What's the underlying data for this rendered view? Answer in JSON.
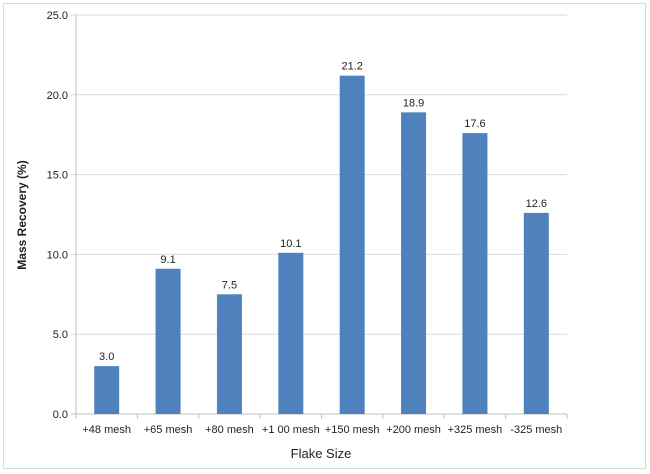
{
  "chart_data": {
    "type": "bar",
    "title": "",
    "xlabel": "Flake Size",
    "ylabel": "Mass Recovery (%)",
    "categories": [
      "+48 mesh",
      "+65 mesh",
      "+80 mesh",
      "+1 00 mesh",
      "+150 mesh",
      "+200 mesh",
      "+325 mesh",
      "-325 mesh"
    ],
    "values": [
      3.0,
      9.1,
      7.5,
      10.1,
      21.2,
      18.9,
      17.6,
      12.6
    ],
    "data_labels": [
      "3.0",
      "9.1",
      "7.5",
      "10.1",
      "21.2",
      "18.9",
      "17.6",
      "12.6"
    ],
    "ylim": [
      0,
      25
    ],
    "yticks": [
      "0.0",
      "5.0",
      "10.0",
      "15.0",
      "20.0",
      "25.0"
    ],
    "grid": true,
    "legend": "none",
    "bar_color": "#4f81bd",
    "grid_color": "#d9d9d9"
  }
}
